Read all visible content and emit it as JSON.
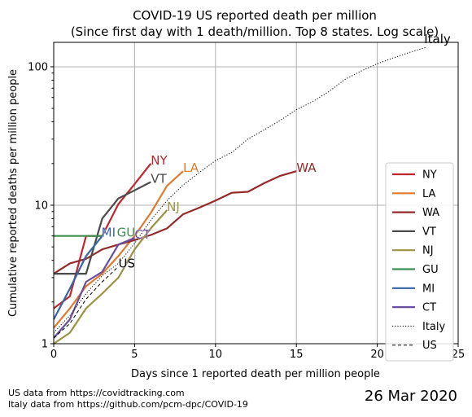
{
  "footer": {
    "source_us": "US data from https://covidtracking.com",
    "source_italy": "Italy data from https://github.com/pcm-dpc/COVID-19",
    "date": "26 Mar 2020"
  },
  "chart_data": {
    "type": "line",
    "title": "COVID-19 US reported death per million",
    "subtitle": "(Since first day with 1 death/million. Top 8 states. Log scale)",
    "xlabel": "Days since 1 reported death per million people",
    "ylabel": "Cumulative reported deaths per million people",
    "xlim": [
      0,
      25
    ],
    "ylim": [
      1,
      150
    ],
    "yscale": "log",
    "grid": true,
    "legend_placement": "lower-right",
    "xticks": [
      0,
      5,
      10,
      15,
      20,
      25
    ],
    "yticks": [
      1,
      10,
      100
    ],
    "series": [
      {
        "name": "NY",
        "color": "#c0272d",
        "style": "solid",
        "end_label": "NY",
        "x": [
          0,
          1,
          2,
          3,
          4,
          5,
          6
        ],
        "y": [
          1.8,
          2.2,
          6.0,
          6.0,
          10.2,
          14.2,
          20.0
        ]
      },
      {
        "name": "LA",
        "color": "#e07b2e",
        "style": "solid",
        "end_label": "LA",
        "x": [
          0,
          1,
          2,
          3,
          4,
          5,
          6,
          7,
          8
        ],
        "y": [
          1.3,
          1.8,
          2.6,
          3.2,
          4.3,
          6.0,
          8.8,
          13.8,
          17.6
        ]
      },
      {
        "name": "WA",
        "color": "#952a2a",
        "style": "solid",
        "end_label": "WA",
        "x": [
          0,
          1,
          2,
          3,
          4,
          5,
          6,
          7,
          8,
          9,
          10,
          11,
          12,
          13,
          14,
          15
        ],
        "y": [
          3.2,
          3.8,
          4.1,
          4.8,
          5.2,
          5.6,
          6.1,
          6.8,
          8.6,
          9.6,
          10.8,
          12.3,
          12.5,
          14.4,
          16.3,
          17.6
        ]
      },
      {
        "name": "VT",
        "color": "#4a4a4a",
        "style": "solid",
        "end_label": "VT",
        "x": [
          0,
          1,
          2,
          3,
          4,
          5,
          6
        ],
        "y": [
          3.2,
          3.2,
          3.2,
          8.0,
          11.2,
          12.8,
          14.7
        ]
      },
      {
        "name": "NJ",
        "color": "#9b9242",
        "style": "solid",
        "end_label": "NJ",
        "x": [
          0,
          1,
          2,
          3,
          4,
          5,
          6,
          7
        ],
        "y": [
          1.0,
          1.2,
          1.8,
          2.3,
          3.0,
          4.8,
          6.8,
          9.2
        ]
      },
      {
        "name": "GU",
        "color": "#3e8f4e",
        "style": "solid",
        "end_label": "GU",
        "x": [
          0,
          1,
          2,
          3
        ],
        "y": [
          6.0,
          6.0,
          6.0,
          6.0
        ]
      },
      {
        "name": "MI",
        "color": "#3566a4",
        "style": "solid",
        "end_label": "MI",
        "x": [
          0,
          1,
          2,
          3
        ],
        "y": [
          1.5,
          2.5,
          4.3,
          6.0
        ]
      },
      {
        "name": "CT",
        "color": "#6a4ea0",
        "style": "solid",
        "end_label": "CT",
        "x": [
          0,
          1,
          2,
          3,
          4,
          5
        ],
        "y": [
          1.1,
          1.5,
          2.8,
          3.3,
          5.2,
          5.8
        ]
      },
      {
        "name": "Italy",
        "color": "#000000",
        "style": "dotted",
        "end_label": "Italy",
        "x": [
          0,
          1,
          2,
          3,
          4,
          5,
          6,
          7,
          8,
          9,
          10,
          11,
          12,
          13,
          14,
          15,
          16,
          17,
          18,
          19,
          20,
          21,
          22,
          23
        ],
        "y": [
          1.2,
          1.6,
          2.3,
          3.1,
          3.8,
          5.3,
          7.8,
          10.8,
          14.0,
          17.2,
          21.0,
          24.0,
          30.0,
          35.0,
          41.0,
          49.0,
          56.0,
          66.0,
          81.0,
          93.0,
          105.0,
          116.0,
          127.0,
          138.0
        ]
      },
      {
        "name": "US",
        "color": "#000000",
        "style": "dashed",
        "end_label": "US",
        "x": [
          0,
          1,
          2,
          3,
          4
        ],
        "y": [
          1.1,
          1.4,
          2.1,
          2.8,
          3.6
        ]
      }
    ]
  }
}
